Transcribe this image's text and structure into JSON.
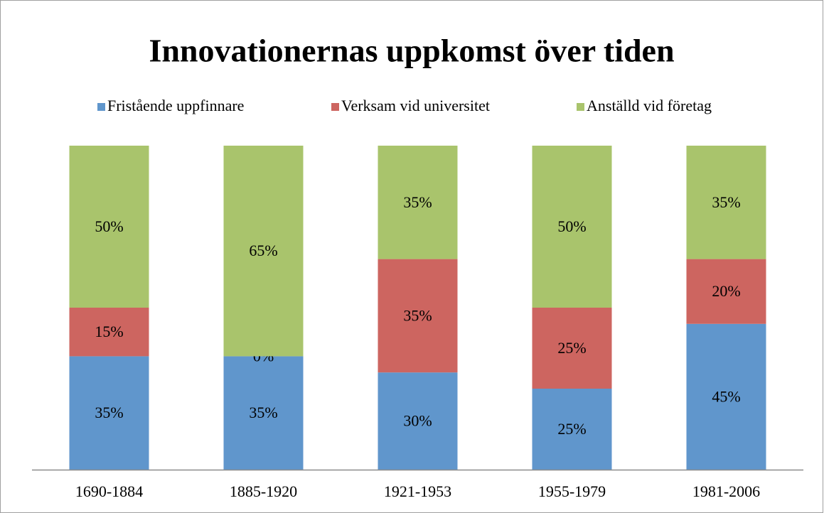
{
  "chart_data": {
    "type": "stacked_bar",
    "title": "Innovationernas uppkomst över tiden",
    "categories": [
      "1690-1884",
      "1885-1920",
      "1921-1953",
      "1955-1979",
      "1981-2006"
    ],
    "series": [
      {
        "name": "Fristående uppfinnare",
        "color": "#6096cc",
        "values": [
          35,
          35,
          30,
          25,
          45
        ],
        "value_labels": [
          "35%",
          "35%",
          "30%",
          "25%",
          "45%"
        ]
      },
      {
        "name": "Verksam vid universitet",
        "color": "#cd6560",
        "values": [
          15,
          0,
          35,
          25,
          20
        ],
        "value_labels": [
          "15%",
          "0%",
          "35%",
          "25%",
          "20%"
        ]
      },
      {
        "name": "Anställd vid företag",
        "color": "#a9c46c",
        "values": [
          50,
          65,
          35,
          50,
          35
        ],
        "value_labels": [
          "50%",
          "65%",
          "35%",
          "50%",
          "35%"
        ]
      }
    ],
    "legend": "top"
  }
}
